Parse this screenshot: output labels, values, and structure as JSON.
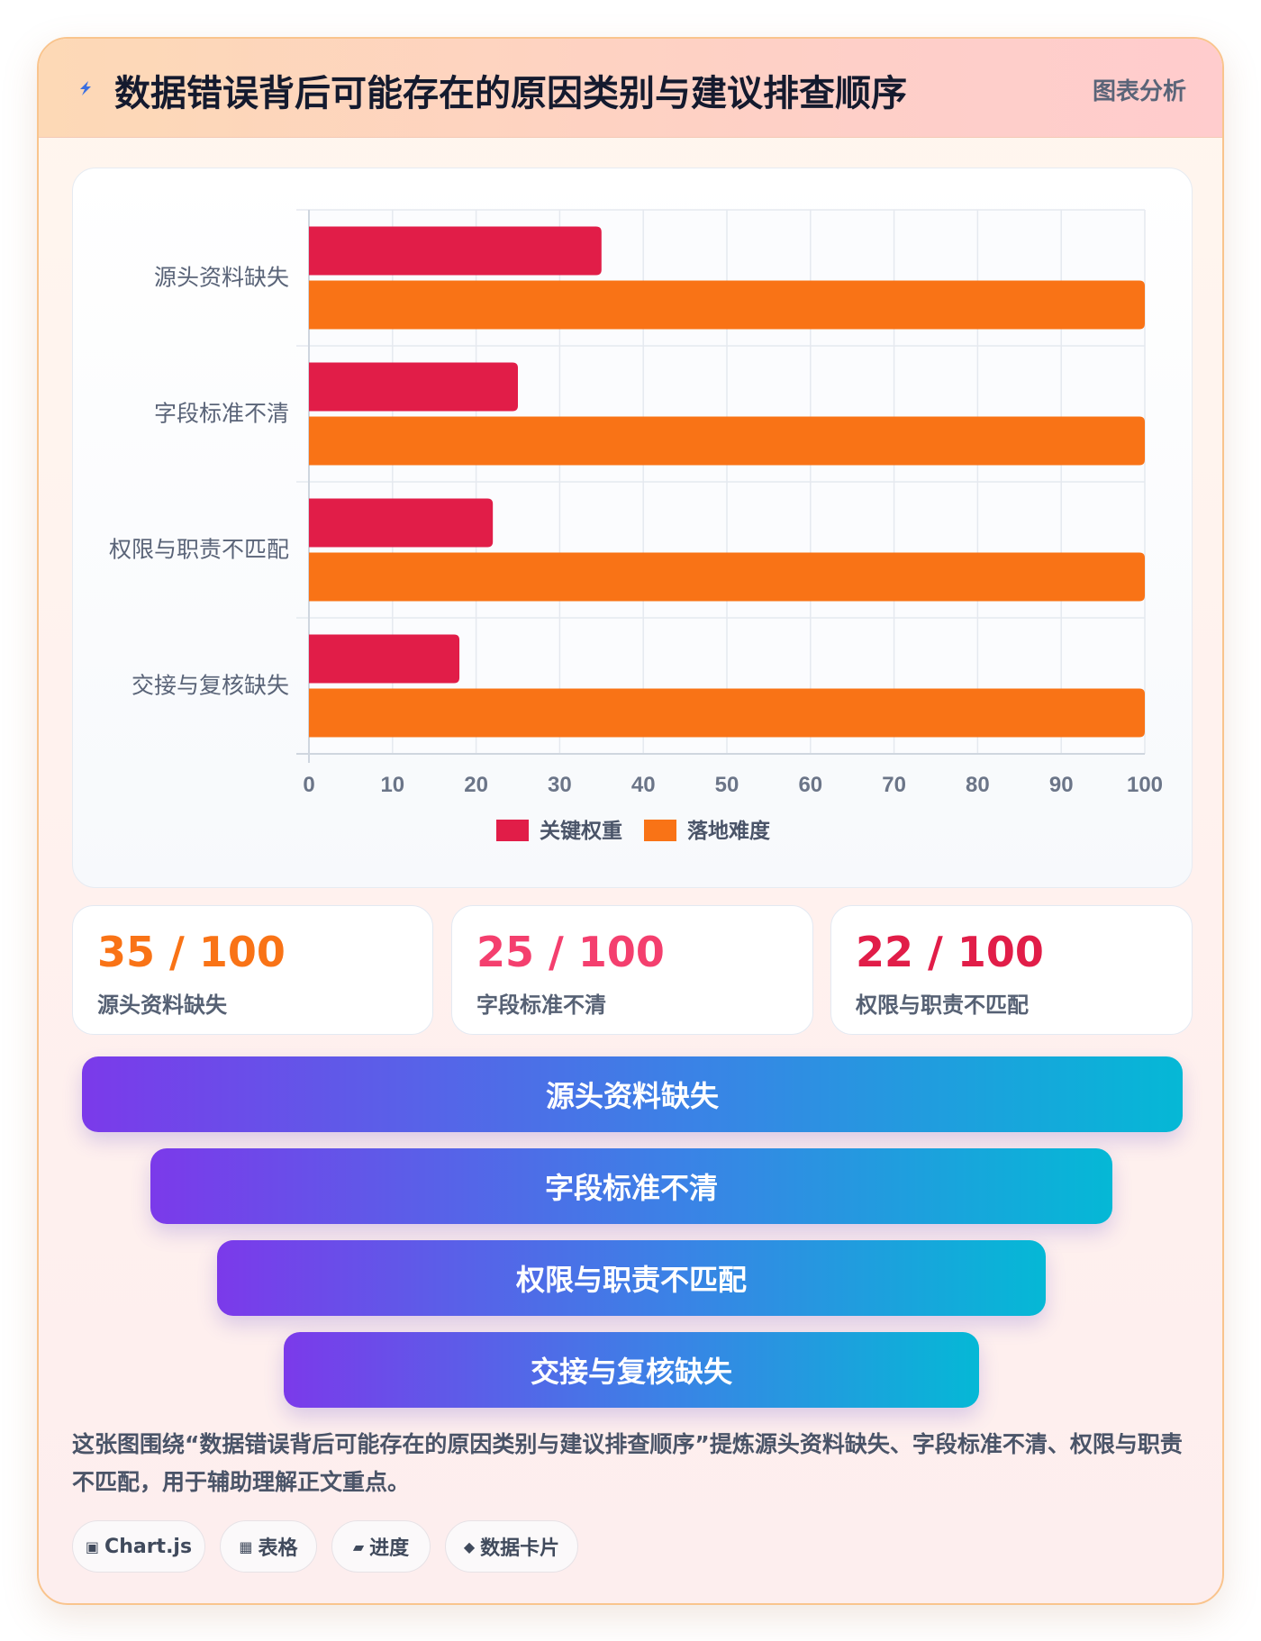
{
  "header": {
    "title": "数据错误背后可能存在的原因类别与建议排查顺序",
    "tag": "图表分析",
    "icon": "lightning-icon"
  },
  "chart_data": {
    "type": "bar",
    "orientation": "horizontal",
    "categories": [
      "源头资料缺失",
      "字段标准不清",
      "权限与职责不匹配",
      "交接与复核缺失"
    ],
    "series": [
      {
        "name": "关键权重",
        "color": "#e11d48",
        "values": [
          35,
          25,
          22,
          18
        ]
      },
      {
        "name": "落地难度",
        "color": "#f97316",
        "values": [
          100,
          100,
          100,
          100
        ]
      }
    ],
    "xlim": [
      0,
      100
    ],
    "xticks": [
      0,
      10,
      20,
      30,
      40,
      50,
      60,
      70,
      80,
      90,
      100
    ],
    "grid": true,
    "legend_position": "bottom"
  },
  "stats": [
    {
      "value": "35 / 100",
      "label": "源头资料缺失",
      "color": "#f97316"
    },
    {
      "value": "25 / 100",
      "label": "字段标准不清",
      "color": "#f43f6e"
    },
    {
      "value": "22 / 100",
      "label": "权限与职责不匹配",
      "color": "#e11d48"
    }
  ],
  "funnel": [
    "源头资料缺失",
    "字段标准不清",
    "权限与职责不匹配",
    "交接与复核缺失"
  ],
  "description": "这张图围绕“数据错误背后可能存在的原因类别与建议排查顺序”提炼源头资料缺失、字段标准不清、权限与职责不匹配，用于辅助理解正文重点。",
  "chips": [
    {
      "icon": "square-icon",
      "glyph": "▣",
      "label": "Chart.js"
    },
    {
      "icon": "grid-icon",
      "glyph": "▦",
      "label": "表格"
    },
    {
      "icon": "progress-icon",
      "glyph": "▰",
      "label": "进度"
    },
    {
      "icon": "diamond-icon",
      "glyph": "◆",
      "label": "数据卡片"
    }
  ]
}
